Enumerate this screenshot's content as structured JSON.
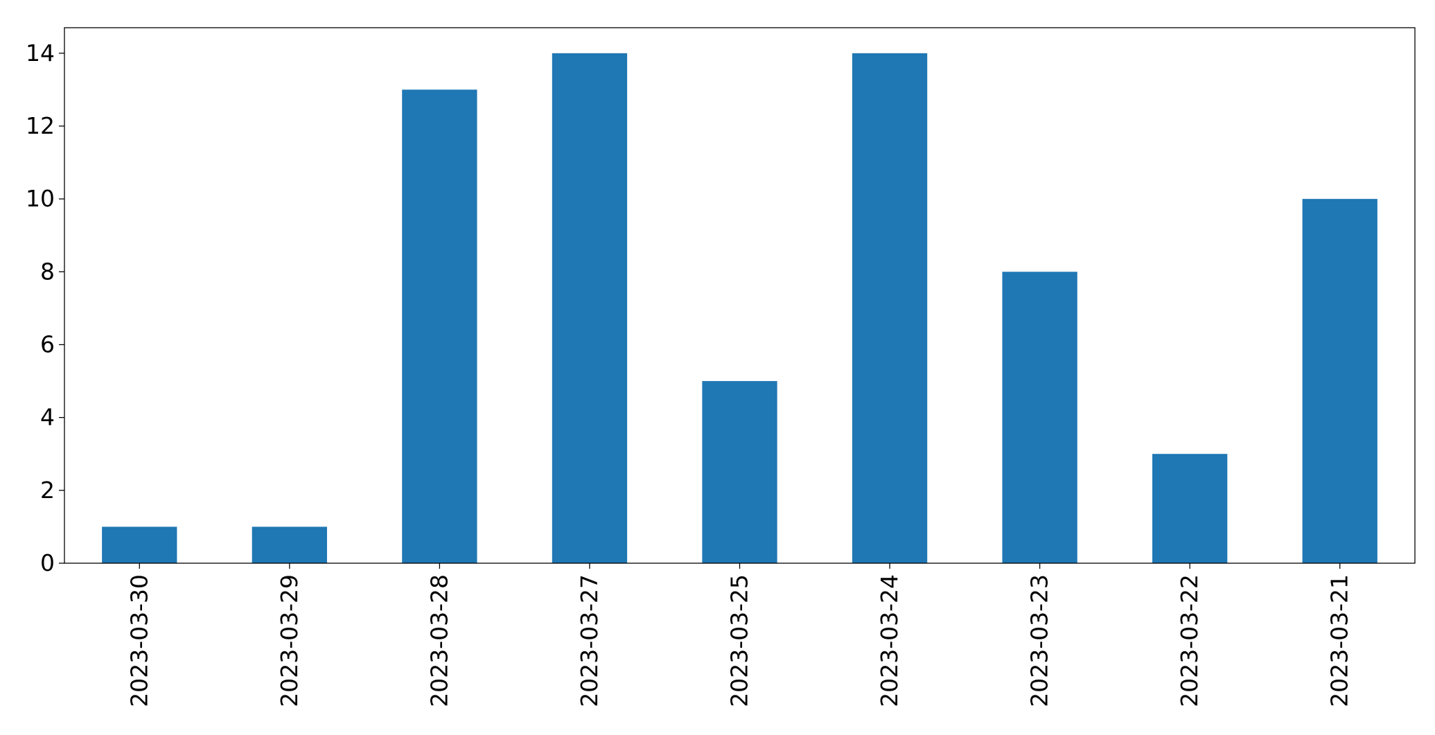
{
  "chart_data": {
    "type": "bar",
    "title": "",
    "xlabel": "",
    "ylabel": "",
    "categories": [
      "2023-03-30",
      "2023-03-29",
      "2023-03-28",
      "2023-03-27",
      "2023-03-25",
      "2023-03-24",
      "2023-03-23",
      "2023-03-22",
      "2023-03-21"
    ],
    "series": [
      {
        "values": [
          1,
          1,
          13,
          14,
          5,
          14,
          8,
          3,
          10
        ],
        "color": "#1f77b4"
      }
    ],
    "ylim": [
      0,
      14.7
    ],
    "yticks": [
      0,
      2,
      4,
      6,
      8,
      10,
      12,
      14
    ],
    "xtick_rotation": 90,
    "grid": false,
    "legend": "none"
  }
}
